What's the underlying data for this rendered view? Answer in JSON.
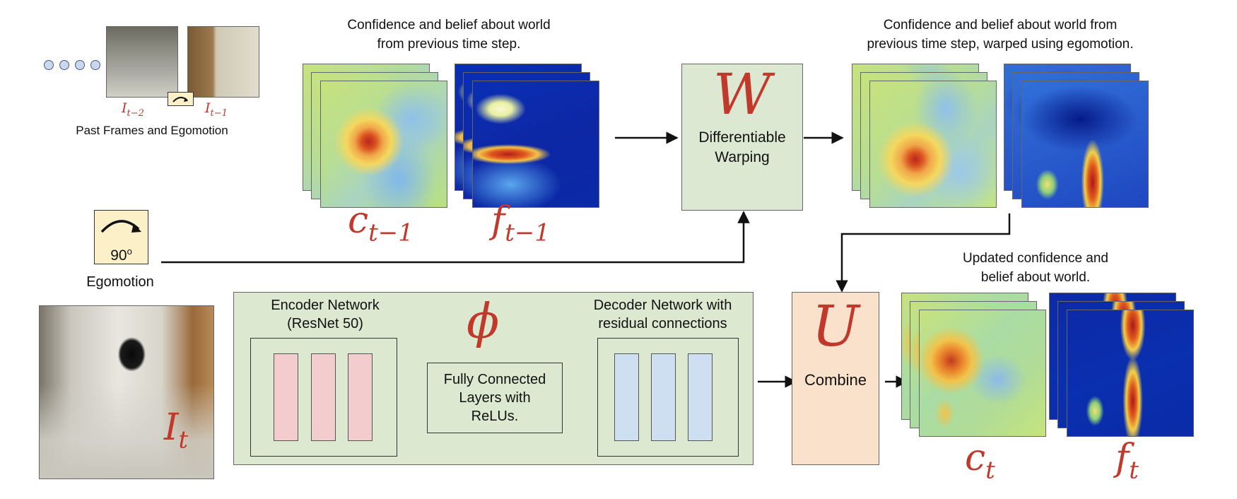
{
  "past_frames": {
    "label": "Past Frames and Egomotion",
    "frame_a": "I_{t-2}",
    "frame_a_base": "I",
    "frame_a_sub": "t−2",
    "frame_b_base": "I",
    "frame_b_sub": "t−1"
  },
  "prev_state": {
    "caption_line1": "Confidence and belief about world",
    "caption_line2": "from previous time step.",
    "conf_base": "c",
    "conf_sub": "t−1",
    "belief_base": "f",
    "belief_sub": "t−1"
  },
  "warp": {
    "symbol": "W",
    "line1": "Differentiable",
    "line2": "Warping"
  },
  "warped_state": {
    "caption_line1": "Confidence and belief about world from",
    "caption_line2": "previous time step, warped using egomotion."
  },
  "egomotion": {
    "value": "90",
    "unit": "o",
    "label": "Egomotion"
  },
  "current_frame": {
    "base": "I",
    "sub": "t"
  },
  "network": {
    "symbol": "ϕ",
    "encoder_line1": "Encoder Network",
    "encoder_line2": "(ResNet 50)",
    "fc_line1": "Fully Connected",
    "fc_line2": "Layers with",
    "fc_line3": "ReLUs.",
    "decoder_line1": "Decoder Network with",
    "decoder_line2": "residual connections"
  },
  "combine": {
    "symbol": "U",
    "label": "Combine"
  },
  "updated_state": {
    "caption_line1": "Updated confidence and",
    "caption_line2": "belief about world.",
    "conf_base": "c",
    "conf_sub": "t",
    "belief_base": "f",
    "belief_sub": "t"
  },
  "colors": {
    "math_red": "#c0392b",
    "network_bg": "#dce8d0",
    "warp_bg": "#dde8d2",
    "combine_bg": "#f9e1cc",
    "ego_bg": "#fbf0c8",
    "encoder_block": "#f3cccd",
    "decoder_block": "#cfdff2"
  }
}
